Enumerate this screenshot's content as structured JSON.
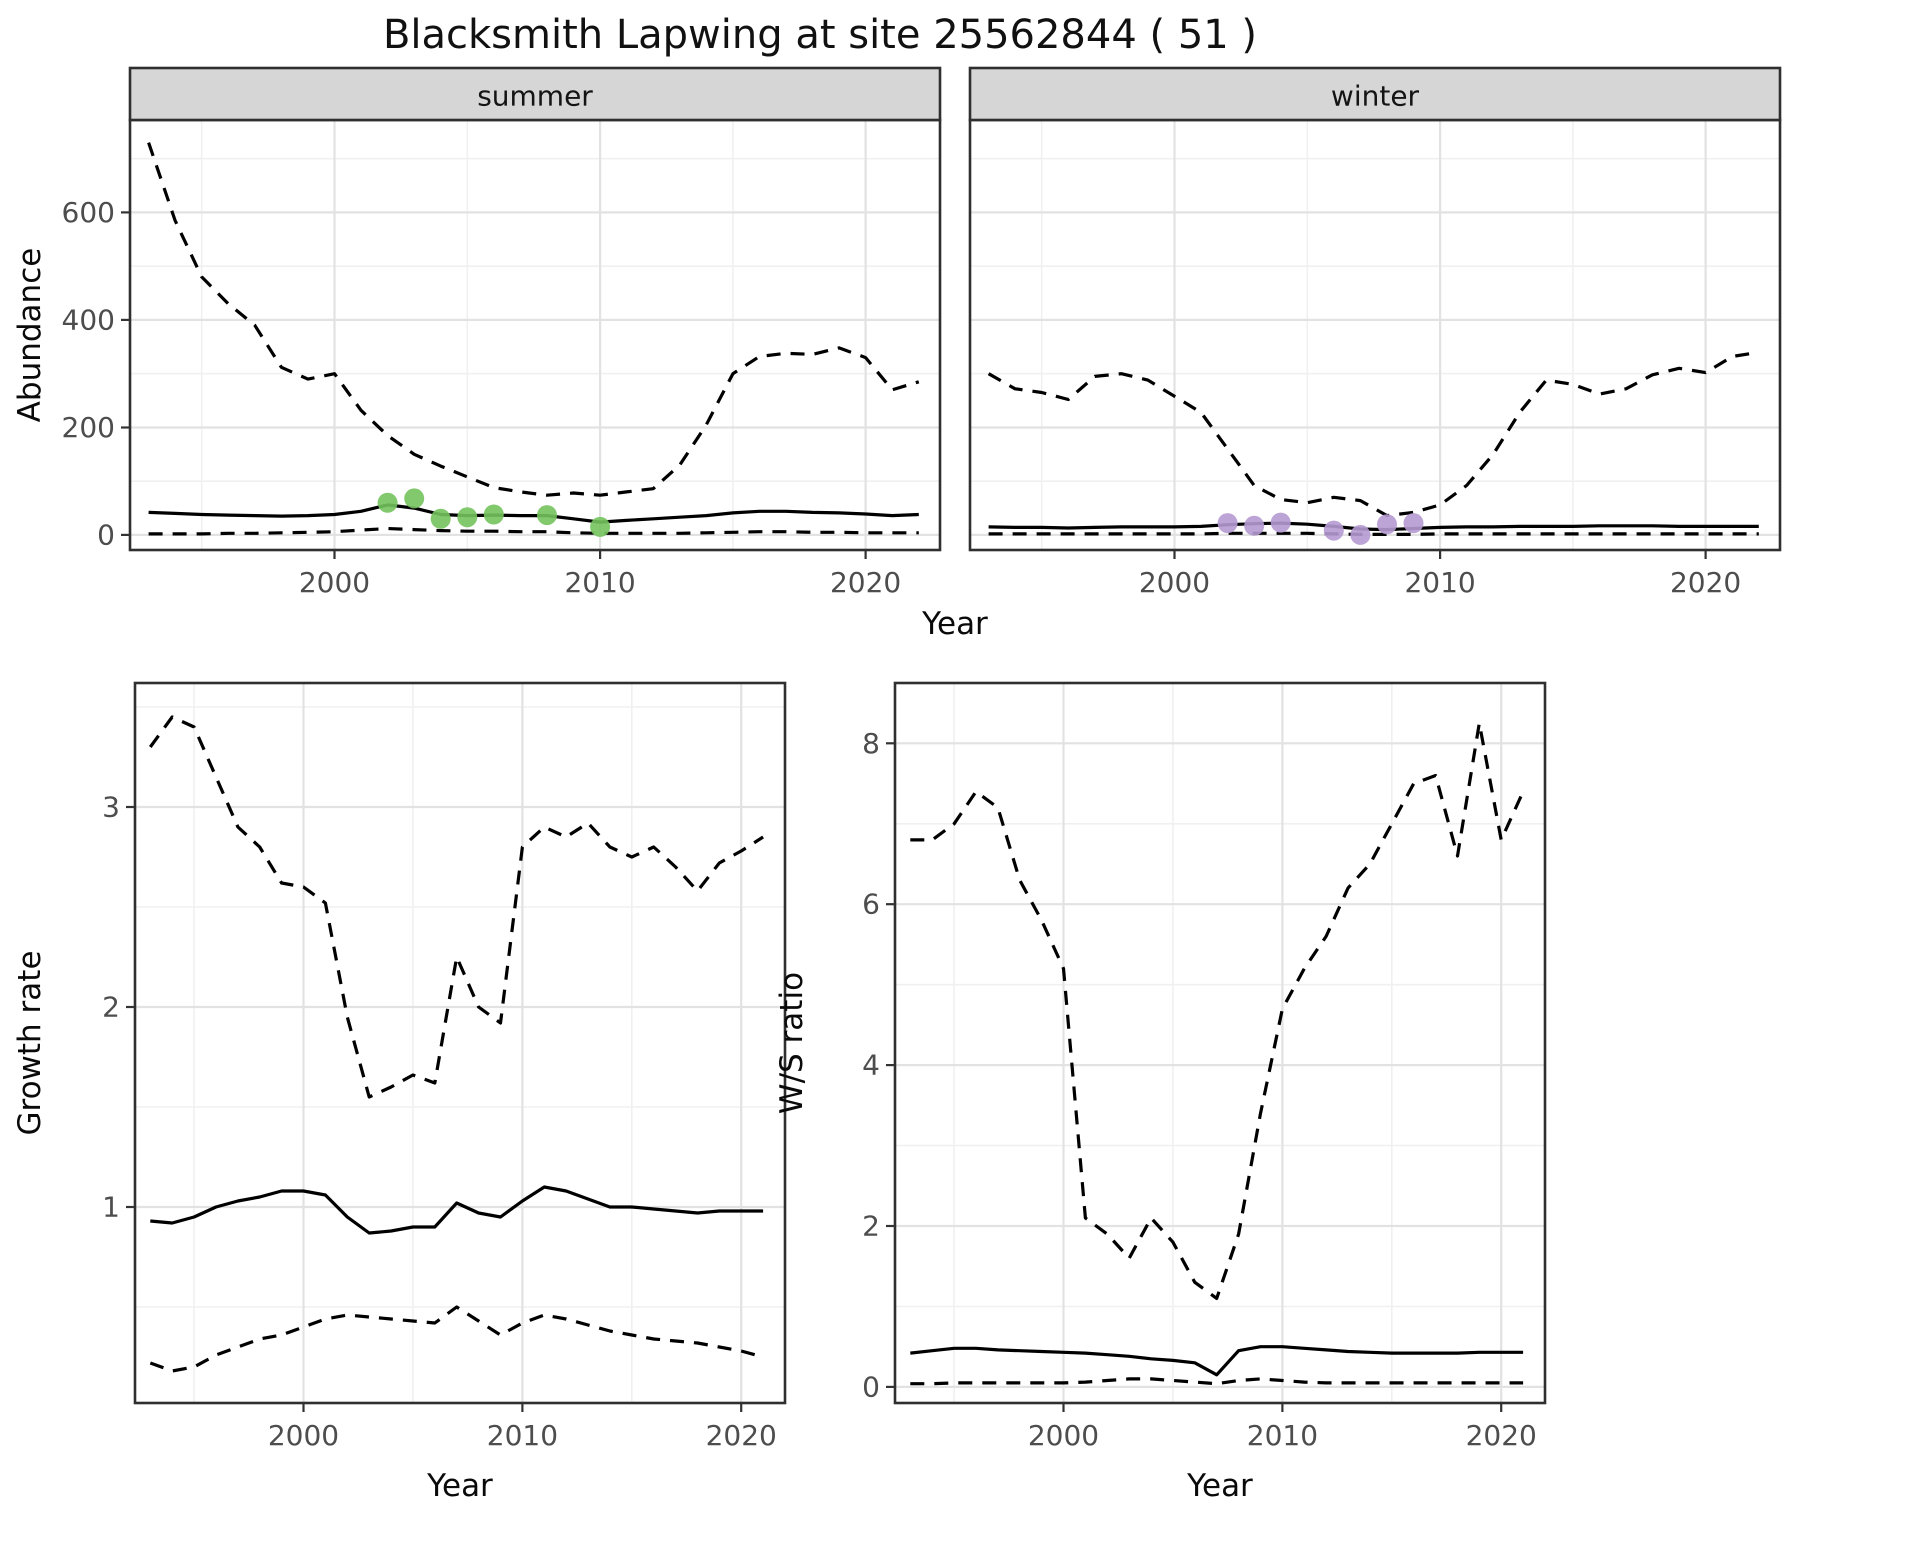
{
  "title": "Blacksmith Lapwing at site 25562844 ( 51 )",
  "colors": {
    "line": "#000000",
    "grid_major": "#e2e2e2",
    "grid_minor": "#f0f0f0",
    "strip_bg": "#d6d6d6",
    "panel_border": "#2f2f2f",
    "axis_text": "#4d4d4d",
    "summer_points": "#74c35e",
    "winter_points": "#b59ad2"
  },
  "facets": [
    "summer",
    "winter"
  ],
  "chart_data": [
    {
      "id": "summer",
      "type": "line",
      "strip": "summer",
      "xlabel": "Year",
      "ylabel": "Abundance",
      "xlim": [
        1992.3,
        2022.8
      ],
      "ylim": [
        -28,
        772
      ],
      "xticks": [
        2000,
        2010,
        2020
      ],
      "yticks": [
        0,
        200,
        400,
        600
      ],
      "x": [
        1993,
        1994,
        1995,
        1996,
        1997,
        1998,
        1999,
        2000,
        2001,
        2002,
        2003,
        2004,
        2005,
        2006,
        2007,
        2008,
        2009,
        2010,
        2011,
        2012,
        2013,
        2014,
        2015,
        2016,
        2017,
        2018,
        2019,
        2020,
        2021,
        2022
      ],
      "series": [
        {
          "name": "upper-ci",
          "style": "dashed",
          "values": [
            730,
            585,
            480,
            430,
            390,
            312,
            290,
            300,
            232,
            185,
            150,
            128,
            108,
            88,
            80,
            74,
            78,
            74,
            80,
            86,
            130,
            205,
            300,
            332,
            338,
            336,
            348,
            330,
            270,
            285
          ]
        },
        {
          "name": "median",
          "style": "solid",
          "values": [
            42,
            40,
            38,
            37,
            36,
            35,
            36,
            38,
            44,
            56,
            50,
            38,
            36,
            37,
            36,
            36,
            30,
            24,
            27,
            30,
            33,
            36,
            41,
            44,
            44,
            42,
            41,
            39,
            36,
            38
          ]
        },
        {
          "name": "lower-ci",
          "style": "dashed",
          "values": [
            2,
            2,
            2,
            3,
            3,
            4,
            5,
            6,
            9,
            12,
            10,
            8,
            7,
            7,
            6,
            6,
            4,
            3,
            3,
            3,
            3,
            4,
            5,
            6,
            6,
            5,
            5,
            4,
            4,
            4
          ]
        }
      ],
      "observations": {
        "x": [
          2002,
          2003,
          2004,
          2005,
          2006,
          2008,
          2010
        ],
        "y": [
          60,
          68,
          30,
          33,
          38,
          37,
          15
        ],
        "color": "#74c35e"
      }
    },
    {
      "id": "winter",
      "type": "line",
      "strip": "winter",
      "xlabel": "Year",
      "ylabel": "Abundance",
      "xlim": [
        1992.3,
        2022.8
      ],
      "ylim": [
        -28,
        772
      ],
      "xticks": [
        2000,
        2010,
        2020
      ],
      "yticks": [
        0,
        200,
        400,
        600
      ],
      "x": [
        1993,
        1994,
        1995,
        1996,
        1997,
        1998,
        1999,
        2000,
        2001,
        2002,
        2003,
        2004,
        2005,
        2006,
        2007,
        2008,
        2009,
        2010,
        2011,
        2012,
        2013,
        2014,
        2015,
        2016,
        2017,
        2018,
        2019,
        2020,
        2021,
        2022
      ],
      "series": [
        {
          "name": "upper-ci",
          "style": "dashed",
          "values": [
            300,
            272,
            265,
            252,
            295,
            300,
            288,
            258,
            228,
            160,
            92,
            66,
            60,
            70,
            64,
            36,
            42,
            56,
            92,
            150,
            228,
            288,
            280,
            262,
            272,
            298,
            310,
            302,
            332,
            340
          ]
        },
        {
          "name": "median",
          "style": "solid",
          "values": [
            15,
            14,
            14,
            13,
            14,
            15,
            15,
            15,
            16,
            19,
            21,
            22,
            20,
            16,
            11,
            10,
            12,
            14,
            15,
            15,
            16,
            16,
            16,
            17,
            17,
            17,
            16,
            16,
            16,
            16
          ]
        },
        {
          "name": "lower-ci",
          "style": "dashed",
          "values": [
            2,
            2,
            2,
            2,
            2,
            2,
            2,
            2,
            2,
            3,
            3,
            3,
            3,
            2,
            1,
            1,
            1,
            2,
            2,
            2,
            2,
            2,
            2,
            2,
            2,
            2,
            2,
            2,
            2,
            2
          ]
        }
      ],
      "observations": {
        "x": [
          2002,
          2003,
          2004,
          2006,
          2007,
          2008,
          2009
        ],
        "y": [
          22,
          17,
          23,
          8,
          0,
          20,
          22
        ],
        "color": "#b59ad2"
      }
    },
    {
      "id": "growth_rate",
      "type": "line",
      "strip": "",
      "xlabel": "Year",
      "ylabel": "Growth rate",
      "xlim": [
        1992.3,
        2022.0
      ],
      "ylim": [
        0.02,
        3.62
      ],
      "xticks": [
        2000,
        2010,
        2020
      ],
      "yticks": [
        1,
        2,
        3
      ],
      "x": [
        1993,
        1994,
        1995,
        1996,
        1997,
        1998,
        1999,
        2000,
        2001,
        2002,
        2003,
        2004,
        2005,
        2006,
        2007,
        2008,
        2009,
        2010,
        2011,
        2012,
        2013,
        2014,
        2015,
        2016,
        2017,
        2018,
        2019,
        2020,
        2021
      ],
      "series": [
        {
          "name": "upper-ci",
          "style": "dashed",
          "values": [
            3.3,
            3.45,
            3.4,
            3.15,
            2.9,
            2.8,
            2.62,
            2.6,
            2.52,
            1.95,
            1.55,
            1.6,
            1.66,
            1.62,
            2.25,
            2.0,
            1.92,
            2.8,
            2.9,
            2.85,
            2.92,
            2.8,
            2.75,
            2.8,
            2.7,
            2.58,
            2.72,
            2.78,
            2.85
          ]
        },
        {
          "name": "median",
          "style": "solid",
          "values": [
            0.93,
            0.92,
            0.95,
            1.0,
            1.03,
            1.05,
            1.08,
            1.08,
            1.06,
            0.95,
            0.87,
            0.88,
            0.9,
            0.9,
            1.02,
            0.97,
            0.95,
            1.03,
            1.1,
            1.08,
            1.04,
            1.0,
            1.0,
            0.99,
            0.98,
            0.97,
            0.98,
            0.98,
            0.98
          ]
        },
        {
          "name": "lower-ci",
          "style": "dashed",
          "values": [
            0.22,
            0.18,
            0.2,
            0.26,
            0.3,
            0.34,
            0.36,
            0.4,
            0.44,
            0.46,
            0.45,
            0.44,
            0.43,
            0.42,
            0.5,
            0.43,
            0.36,
            0.42,
            0.46,
            0.44,
            0.41,
            0.38,
            0.36,
            0.34,
            0.33,
            0.32,
            0.3,
            0.28,
            0.25
          ]
        }
      ]
    },
    {
      "id": "ws_ratio",
      "type": "line",
      "strip": "",
      "xlabel": "Year",
      "ylabel": "W/S ratio",
      "xlim": [
        1992.3,
        2022.0
      ],
      "ylim": [
        -0.2,
        8.75
      ],
      "xticks": [
        2000,
        2010,
        2020
      ],
      "yticks": [
        0,
        2,
        4,
        6,
        8
      ],
      "x": [
        1993,
        1994,
        1995,
        1996,
        1997,
        1998,
        1999,
        2000,
        2001,
        2002,
        2003,
        2004,
        2005,
        2006,
        2007,
        2008,
        2009,
        2010,
        2011,
        2012,
        2013,
        2014,
        2015,
        2016,
        2017,
        2018,
        2019,
        2020,
        2021
      ],
      "series": [
        {
          "name": "upper-ci",
          "style": "dashed",
          "values": [
            6.8,
            6.8,
            7.0,
            7.4,
            7.2,
            6.3,
            5.8,
            5.2,
            2.1,
            1.9,
            1.6,
            2.1,
            1.8,
            1.3,
            1.1,
            1.9,
            3.4,
            4.7,
            5.2,
            5.6,
            6.2,
            6.5,
            7.0,
            7.5,
            7.6,
            6.6,
            8.25,
            6.8,
            7.4
          ]
        },
        {
          "name": "median",
          "style": "solid",
          "values": [
            0.42,
            0.45,
            0.48,
            0.48,
            0.46,
            0.45,
            0.44,
            0.43,
            0.42,
            0.4,
            0.38,
            0.35,
            0.33,
            0.3,
            0.15,
            0.45,
            0.5,
            0.5,
            0.48,
            0.46,
            0.44,
            0.43,
            0.42,
            0.42,
            0.42,
            0.42,
            0.43,
            0.43,
            0.43
          ]
        },
        {
          "name": "lower-ci",
          "style": "dashed",
          "values": [
            0.04,
            0.04,
            0.05,
            0.05,
            0.05,
            0.05,
            0.05,
            0.05,
            0.06,
            0.08,
            0.1,
            0.1,
            0.08,
            0.06,
            0.04,
            0.08,
            0.1,
            0.08,
            0.06,
            0.05,
            0.05,
            0.05,
            0.05,
            0.05,
            0.05,
            0.05,
            0.05,
            0.05,
            0.05
          ]
        }
      ]
    }
  ]
}
